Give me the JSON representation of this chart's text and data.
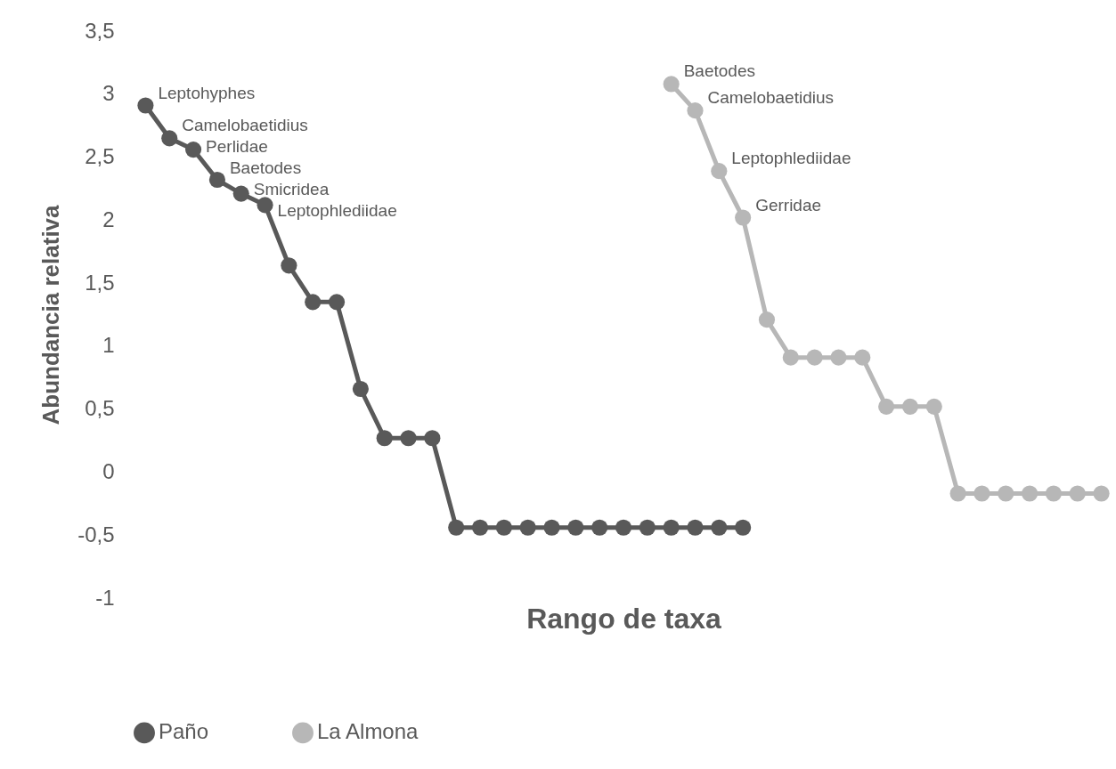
{
  "chart_data": {
    "type": "line",
    "xlabel": "Rango de taxa",
    "ylabel": "Abundancia relativa",
    "categories": [
      null,
      null,
      null,
      null,
      null,
      null,
      null,
      null,
      null,
      null,
      null,
      null,
      null,
      null,
      null,
      null,
      null,
      null,
      null,
      null,
      null,
      null,
      null,
      null,
      null,
      null,
      null,
      null,
      null,
      null,
      null,
      null,
      null,
      null,
      null,
      null,
      null,
      null,
      null,
      null,
      null
    ],
    "series": [
      {
        "name": "Paño",
        "color": "#595959",
        "values": [
          2.91,
          2.65,
          2.56,
          2.32,
          2.21,
          2.12,
          1.64,
          1.35,
          1.35,
          0.66,
          0.27,
          0.27,
          0.27,
          -0.44,
          -0.44,
          -0.44,
          -0.44,
          -0.44,
          -0.44,
          -0.44,
          -0.44,
          -0.44,
          -0.44,
          -0.44,
          -0.44,
          -0.44,
          null,
          null,
          null,
          null,
          null,
          null,
          null,
          null,
          null,
          null,
          null,
          null,
          null,
          null,
          null
        ],
        "value_labels": [
          "Leptohyphes",
          "Camelobaetidius",
          "Perlidae",
          "Baetodes",
          "Smicridea",
          "Leptophlediidae",
          null,
          null,
          null,
          null,
          null,
          null,
          null,
          null,
          null,
          null,
          null,
          null,
          null,
          null,
          null,
          null,
          null,
          null,
          null,
          null,
          null,
          null,
          null,
          null,
          null,
          null,
          null,
          null,
          null,
          null,
          null,
          null,
          null,
          null,
          null
        ]
      },
      {
        "name": "La Almona",
        "color": "#b7b7b7",
        "values": [
          null,
          null,
          null,
          null,
          null,
          null,
          null,
          null,
          null,
          null,
          null,
          null,
          null,
          null,
          null,
          null,
          null,
          null,
          null,
          null,
          null,
          null,
          3.08,
          2.87,
          2.39,
          2.02,
          1.21,
          0.91,
          0.91,
          0.91,
          0.91,
          0.52,
          0.52,
          0.52,
          -0.17,
          -0.17,
          -0.17,
          -0.17,
          -0.17,
          -0.17,
          -0.17
        ],
        "value_labels": [
          null,
          null,
          null,
          null,
          null,
          null,
          null,
          null,
          null,
          null,
          null,
          null,
          null,
          null,
          null,
          null,
          null,
          null,
          null,
          null,
          null,
          null,
          "Baetodes",
          "Camelobaetidius",
          "Leptophlediidae",
          "Gerridae",
          null,
          null,
          null,
          null,
          null,
          null,
          null,
          null,
          null,
          null,
          null,
          null,
          null,
          null,
          null
        ]
      }
    ],
    "ylim": [
      -1,
      3.5
    ],
    "yticks": [
      {
        "value": -1,
        "label": "-1"
      },
      {
        "value": -0.5,
        "label": "-0,5"
      },
      0,
      {
        "value": 0.5,
        "label": "0,5"
      },
      1,
      {
        "value": 1.5,
        "label": "1,5"
      },
      2,
      {
        "value": 2.5,
        "label": "2,5"
      },
      3,
      {
        "value": 3.5,
        "label": "3,5"
      }
    ],
    "tick_labels": "y",
    "grid": false,
    "legend": "bottom",
    "marker": "circle",
    "line_style": "solid"
  }
}
